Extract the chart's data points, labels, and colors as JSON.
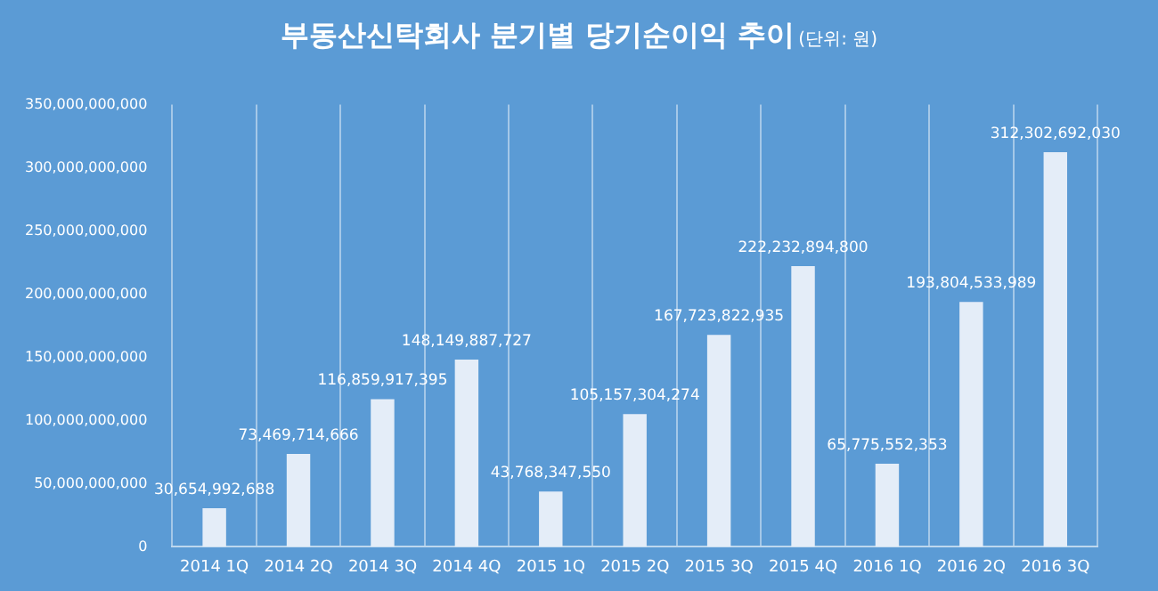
{
  "chart_data": {
    "type": "bar",
    "title": "부동산신탁회사 분기별 당기순이익 추이",
    "subtitle": "(단위: 원)",
    "categories": [
      "2014 1Q",
      "2014 2Q",
      "2014 3Q",
      "2014 4Q",
      "2015 1Q",
      "2015 2Q",
      "2015 3Q",
      "2015 4Q",
      "2016 1Q",
      "2016 2Q",
      "2016 3Q"
    ],
    "values": [
      30654992688,
      73469714666,
      116859917395,
      148149887727,
      43768347550,
      105157304274,
      167723822935,
      222232894800,
      65775552353,
      193804533989,
      312302692030
    ],
    "value_labels": [
      "30,654,992,688",
      "73,469,714,666",
      "116,859,917,395",
      "148,149,887,727",
      "43,768,347,550",
      "105,157,304,274",
      "167,723,822,935",
      "222,232,894,800",
      "65,775,552,353",
      "193,804,533,989",
      "312,302,692,030"
    ],
    "color": "#e4edf8",
    "ylim": [
      0,
      350000000000
    ],
    "yticks": [
      0,
      {
        "value": 50000000000,
        "label": "50,000,000,000"
      },
      {
        "value": 100000000000,
        "label": "100,000,000,000"
      },
      {
        "value": 150000000000,
        "label": "150,000,000,000"
      },
      {
        "value": 200000000000,
        "label": "200,000,000,000"
      },
      {
        "value": 250000000000,
        "label": "250,000,000,000"
      },
      {
        "value": 300000000000,
        "label": "300,000,000,000"
      },
      {
        "value": 350000000000,
        "label": "350,000,000,000"
      }
    ],
    "grid": "x"
  }
}
